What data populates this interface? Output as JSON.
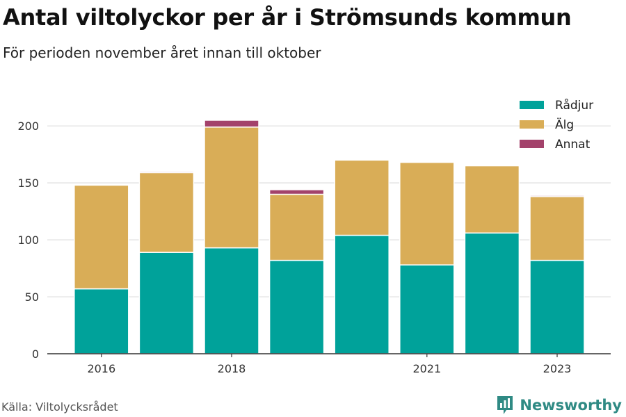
{
  "header": {
    "title": "Antal viltolyckor per år i Strömsunds kommun",
    "subtitle": "För perioden november året innan till oktober"
  },
  "footer": {
    "source": "Källa: Viltolycksrådet",
    "brand": "Newsworthy",
    "brand_icon": "bar-chart-logo-icon",
    "brand_color": "#2f8a84"
  },
  "chart_data": {
    "type": "bar",
    "stacked": true,
    "x": [
      2016,
      2017,
      2018,
      2019,
      2020,
      2021,
      2022,
      2023
    ],
    "x_tick_labels": [
      "2016",
      "2018",
      "2021",
      "2023"
    ],
    "series": [
      {
        "name": "Rådjur",
        "color": "#00a29a",
        "values": [
          57,
          89,
          93,
          82,
          104,
          78,
          106,
          82
        ]
      },
      {
        "name": "Älg",
        "color": "#d9ad57",
        "values": [
          91,
          70,
          106,
          58,
          66,
          90,
          59,
          56
        ]
      },
      {
        "name": "Annat",
        "color": "#a3426b",
        "values": [
          0,
          1,
          6,
          4,
          0,
          0,
          0,
          1
        ]
      }
    ],
    "ylim": [
      0,
      230
    ],
    "yticks": [
      0,
      50,
      100,
      150,
      200
    ],
    "grid": true,
    "legend": "top-right",
    "xlabel": "",
    "ylabel": ""
  }
}
